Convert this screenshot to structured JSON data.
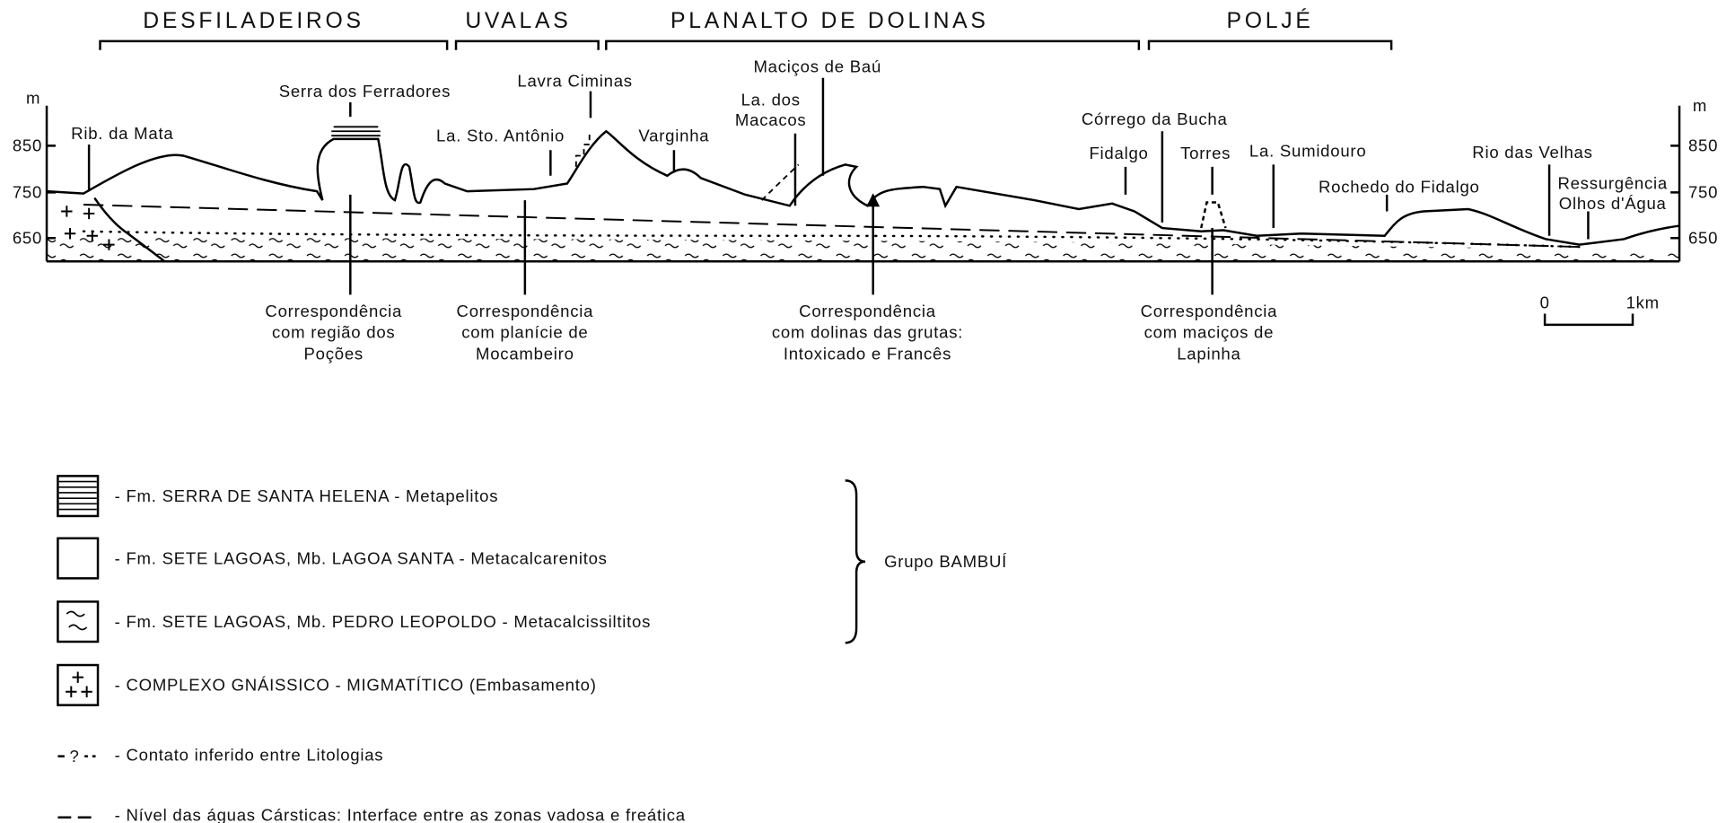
{
  "header": {
    "sections": [
      "DESFILADEIROS",
      "UVALAS",
      "PLANALTO DE DOLINAS",
      "POLJÉ"
    ]
  },
  "elevation_axis": {
    "left": {
      "unit": "m",
      "ticks": [
        "850",
        "750",
        "650"
      ]
    },
    "right": {
      "unit": "m",
      "ticks": [
        "850",
        "750",
        "650"
      ]
    }
  },
  "places": [
    {
      "lines": [
        "Rib. da Mata"
      ]
    },
    {
      "lines": [
        "Serra dos Ferradores"
      ]
    },
    {
      "lines": [
        "Lavra Ciminas"
      ]
    },
    {
      "lines": [
        "Maciços de Baú"
      ]
    },
    {
      "lines": [
        "La. dos",
        "Macacos"
      ]
    },
    {
      "lines": [
        "La. Sto. Antônio"
      ]
    },
    {
      "lines": [
        "Varginha"
      ]
    },
    {
      "lines": [
        "Córrego da Bucha"
      ]
    },
    {
      "lines": [
        "Fidalgo"
      ]
    },
    {
      "lines": [
        "Torres"
      ]
    },
    {
      "lines": [
        "La. Sumidouro"
      ]
    },
    {
      "lines": [
        "Rochedo do Fidalgo"
      ]
    },
    {
      "lines": [
        "Rio das Velhas"
      ]
    },
    {
      "lines": [
        "Ressurgência",
        "Olhos d'Água"
      ]
    }
  ],
  "correspondences": [
    {
      "lines": [
        "Correspondência",
        "com região dos",
        "Poções"
      ]
    },
    {
      "lines": [
        "Correspondência",
        "com planície de",
        "Mocambeiro"
      ]
    },
    {
      "lines": [
        "Correspondência",
        "com dolinas das grutas:",
        "Intoxicado e Francês"
      ]
    },
    {
      "lines": [
        "Correspondência",
        "com maciços de",
        "Lapinha"
      ]
    }
  ],
  "scale_bar": {
    "start": "0",
    "end": "1km"
  },
  "legend": {
    "items": [
      {
        "text": "- Fm. SERRA DE SANTA HELENA - Metapelitos"
      },
      {
        "text": "- Fm. SETE LAGOAS, Mb. LAGOA SANTA - Metacalcarenitos"
      },
      {
        "text": "- Fm. SETE LAGOAS, Mb. PEDRO LEOPOLDO - Metacalcissiltitos"
      },
      {
        "text": "- COMPLEXO GNÁISSICO - MIGMATÍTICO (Embasamento)"
      },
      {
        "symbol": "?",
        "text": "- Contato inferido entre Litologias"
      },
      {
        "text": "- Nível das águas Cársticas: Interface entre as zonas vadosa e freática"
      }
    ],
    "group": "Grupo BAMBUÍ"
  }
}
